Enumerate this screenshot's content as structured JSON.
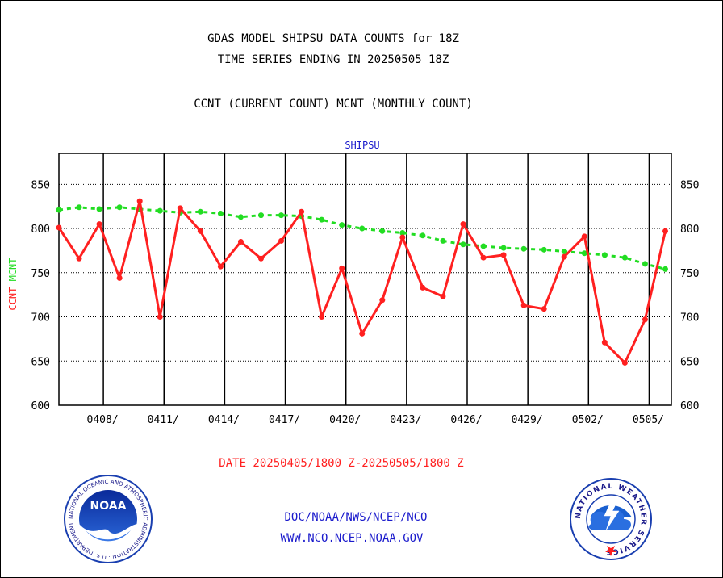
{
  "header": {
    "title_line1": "GDAS MODEL SHIPSU DATA COUNTS for 18Z",
    "title_line2": "TIME SERIES ENDING IN 20250505 18Z",
    "subtitle": "CCNT (CURRENT COUNT) MCNT (MONTHLY COUNT)"
  },
  "footer": {
    "date_range": "DATE 20250405/1800 Z-20250505/1800 Z",
    "org_path": "DOC/NOAA/NWS/NCEP/NCO",
    "website": "WWW.NCO.NCEP.NOAA.GOV"
  },
  "logos": {
    "noaa_text": "NOAA",
    "noaa_ring_text": "NATIONAL OCEANIC AND ATMOSPHERIC ADMINISTRATION · U.S. DEPARTMENT OF COMMERCE",
    "nws_ring_text": "NATIONAL WEATHER SERVICE"
  },
  "colors": {
    "ccnt": "#ff2020",
    "mcnt": "#22dd22",
    "text_blue": "#1a1acc",
    "text_red": "#ff2020",
    "text_black": "#000000"
  },
  "chart_data": {
    "type": "line",
    "title": "SHIPSU",
    "ylabel_ccnt": "CCNT",
    "ylabel_mcnt": "MCNT",
    "ylim": [
      600,
      885
    ],
    "yticks": [
      600,
      650,
      700,
      750,
      800,
      850
    ],
    "ytick_labels": [
      "600",
      "650",
      "700",
      "750",
      "800",
      "850"
    ],
    "xlim": [
      0,
      30.3
    ],
    "xtick_positions": [
      2.2,
      5.2,
      8.2,
      11.2,
      14.2,
      17.2,
      20.2,
      23.2,
      26.2,
      29.2
    ],
    "xtick_labels": [
      "0408/",
      "0411/",
      "0414/",
      "0417/",
      "0420/",
      "0423/",
      "0426/",
      "0429/",
      "0502/",
      "0505/"
    ],
    "grid": true,
    "series": [
      {
        "name": "CCNT",
        "style": "solid",
        "x": [
          0,
          1,
          2,
          3,
          4,
          5,
          6,
          7,
          8,
          9,
          10,
          11,
          12,
          13,
          14,
          15,
          16,
          17,
          18,
          19,
          20,
          21,
          22,
          23,
          24,
          25,
          26,
          27,
          28,
          29,
          30
        ],
        "values": [
          801,
          766,
          805,
          744,
          831,
          700,
          823,
          797,
          757,
          785,
          766,
          786,
          819,
          700,
          755,
          681,
          719,
          790,
          733,
          723,
          805,
          767,
          770,
          713,
          709,
          768,
          791,
          671,
          648,
          697,
          797
        ]
      },
      {
        "name": "MCNT",
        "style": "dashed",
        "x": [
          0,
          1,
          2,
          3,
          4,
          5,
          6,
          7,
          8,
          9,
          10,
          11,
          12,
          13,
          14,
          15,
          16,
          17,
          18,
          19,
          20,
          21,
          22,
          23,
          24,
          25,
          26,
          27,
          28,
          29,
          30
        ],
        "values": [
          821,
          824,
          822,
          824,
          822,
          820,
          818,
          819,
          817,
          813,
          815,
          815,
          814,
          810,
          804,
          800,
          797,
          795,
          792,
          786,
          782,
          780,
          778,
          777,
          776,
          774,
          772,
          770,
          767,
          760,
          754
        ]
      }
    ]
  }
}
